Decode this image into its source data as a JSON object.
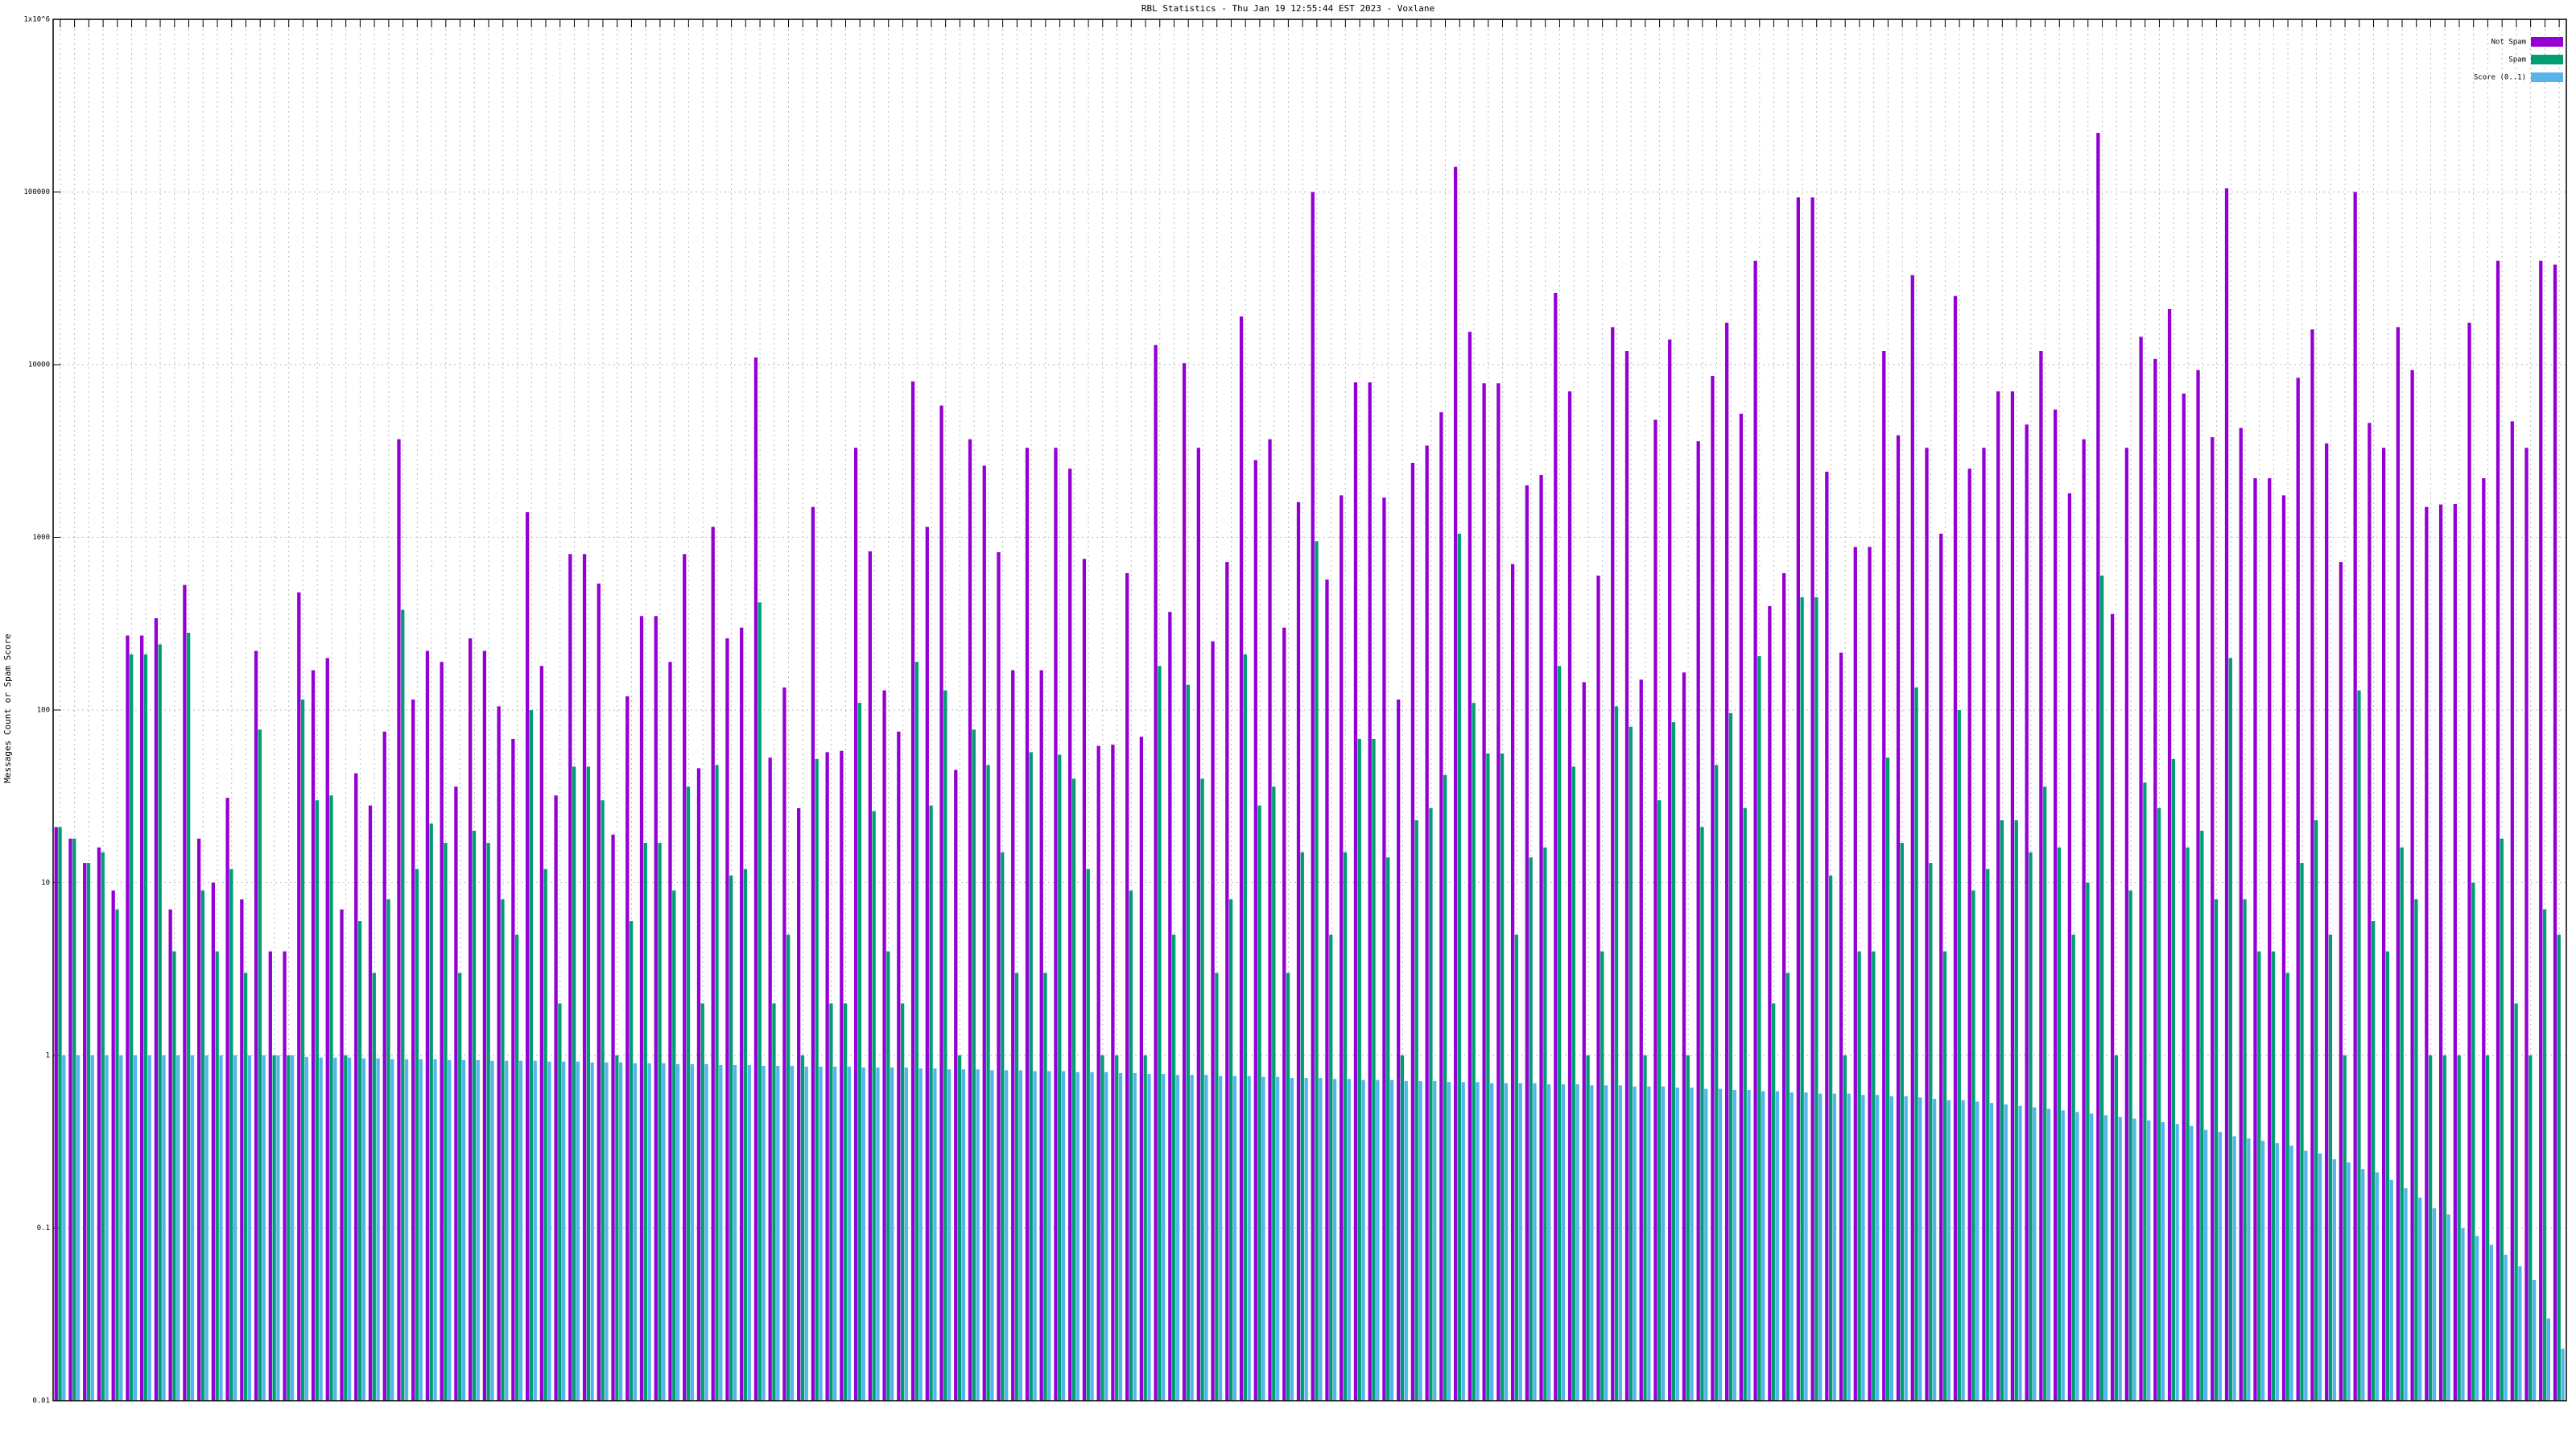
{
  "chart_data": {
    "type": "bar",
    "title": "RBL Statistics - Thu Jan 19 12:55:44 EST 2023 - Voxlane",
    "y_label": "Messages Count or Spam Score",
    "log_y": true,
    "grid": true,
    "legend": "top-right",
    "ylim": [
      0.01,
      1000000
    ],
    "yticks": [
      0.01,
      0.1,
      1,
      10,
      100,
      1000,
      10000,
      100000,
      {
        "value": 1000000,
        "label": "1x10^6"
      }
    ],
    "series": [
      {
        "name": "Not Spam",
        "color": "#9400d3",
        "values": [
          21,
          18,
          13,
          16,
          9,
          270,
          270,
          340,
          7,
          530,
          18,
          10,
          31,
          8,
          220,
          4,
          4,
          480,
          170,
          200,
          7,
          43,
          28,
          75,
          3700,
          115,
          220,
          190,
          36,
          260,
          220,
          105,
          68,
          1400,
          180,
          32,
          800,
          800,
          540,
          19,
          120,
          350,
          350,
          190,
          800,
          46,
          1150,
          260,
          300,
          11000,
          53,
          135,
          27,
          1500,
          57,
          58,
          3300,
          830,
          130,
          75,
          8000,
          1150,
          5800,
          45,
          3700,
          2600,
          820,
          170,
          3300,
          170,
          3300,
          2500,
          750,
          62,
          63,
          620,
          70,
          13000,
          370,
          10200,
          3300,
          250,
          720,
          19000,
          2800,
          3700,
          300,
          1600,
          100000,
          570,
          1750,
          7900,
          7900,
          1700,
          115,
          2700,
          3400,
          5300,
          140000,
          15500,
          7800,
          7800,
          700,
          2000,
          2300,
          26000,
          7000,
          145,
          600,
          16500,
          12000,
          150,
          4800,
          14000,
          165,
          3600,
          8600,
          17500,
          5200,
          40000,
          400,
          620,
          93000,
          93000,
          2400,
          215,
          880,
          880,
          12000,
          3900,
          33000,
          3300,
          1050,
          25000,
          2500,
          3300,
          7000,
          7000,
          4500,
          12000,
          5500,
          1800,
          3700,
          220000,
          360,
          3300,
          14500,
          10800,
          21000,
          6800,
          9300,
          3800,
          105000,
          4300,
          2200,
          2200,
          1750,
          8400,
          16000,
          3500,
          720,
          100000,
          4600,
          3300,
          16500,
          9300,
          1500,
          1550,
          1560,
          17500,
          2200,
          40000,
          4700,
          3300,
          40000,
          38000
        ]
      },
      {
        "name": "Spam",
        "color": "#009e73",
        "values": [
          21,
          18,
          13,
          15,
          7,
          210,
          210,
          240,
          4,
          280,
          9,
          4,
          12,
          3,
          77,
          1,
          1,
          115,
          30,
          32,
          1,
          6,
          3,
          8,
          380,
          12,
          22,
          17,
          3,
          20,
          17,
          8,
          5,
          100,
          12,
          2,
          47,
          47,
          30,
          1,
          6,
          17,
          17,
          9,
          36,
          2,
          48,
          11,
          12,
          420,
          2,
          5,
          1,
          52,
          2,
          2,
          110,
          26,
          4,
          2,
          190,
          28,
          130,
          1,
          77,
          48,
          15,
          3,
          57,
          3,
          55,
          40,
          12,
          1,
          1,
          9,
          1,
          180,
          5,
          140,
          40,
          3,
          8,
          210,
          28,
          36,
          3,
          15,
          950,
          5,
          15,
          68,
          68,
          14,
          1,
          23,
          27,
          42,
          1050,
          110,
          56,
          56,
          5,
          14,
          16,
          180,
          47,
          1,
          4,
          105,
          80,
          1,
          30,
          85,
          1,
          21,
          48,
          96,
          27,
          205,
          2,
          3,
          450,
          450,
          11,
          1,
          4,
          4,
          53,
          17,
          135,
          13,
          4,
          100,
          9,
          12,
          23,
          23,
          15,
          36,
          16,
          5,
          10,
          600,
          1,
          9,
          38,
          27,
          52,
          16,
          20,
          8,
          200,
          8,
          4,
          4,
          3,
          13,
          23,
          5,
          1,
          130,
          6,
          4,
          16,
          8,
          1,
          1,
          1,
          10,
          1,
          18,
          2,
          1,
          7,
          5
        ]
      },
      {
        "name": "Score (0..1)",
        "color": "#56b4e9",
        "values": [
          1,
          1,
          1,
          1,
          1,
          1,
          1,
          1,
          1,
          1,
          1,
          1,
          1,
          1,
          1,
          1,
          1,
          0.98,
          0.97,
          0.97,
          0.97,
          0.96,
          0.96,
          0.95,
          0.95,
          0.95,
          0.95,
          0.94,
          0.94,
          0.94,
          0.93,
          0.93,
          0.93,
          0.93,
          0.92,
          0.92,
          0.92,
          0.91,
          0.91,
          0.91,
          0.9,
          0.9,
          0.9,
          0.89,
          0.89,
          0.89,
          0.88,
          0.88,
          0.88,
          0.87,
          0.87,
          0.87,
          0.86,
          0.86,
          0.86,
          0.86,
          0.85,
          0.85,
          0.85,
          0.85,
          0.84,
          0.84,
          0.83,
          0.83,
          0.83,
          0.82,
          0.82,
          0.82,
          0.81,
          0.81,
          0.81,
          0.8,
          0.8,
          0.8,
          0.79,
          0.79,
          0.78,
          0.78,
          0.77,
          0.77,
          0.77,
          0.76,
          0.76,
          0.76,
          0.75,
          0.75,
          0.74,
          0.74,
          0.74,
          0.73,
          0.73,
          0.72,
          0.72,
          0.72,
          0.71,
          0.71,
          0.71,
          0.7,
          0.7,
          0.7,
          0.69,
          0.69,
          0.69,
          0.69,
          0.68,
          0.68,
          0.68,
          0.67,
          0.67,
          0.67,
          0.66,
          0.66,
          0.66,
          0.65,
          0.65,
          0.64,
          0.64,
          0.63,
          0.63,
          0.62,
          0.62,
          0.61,
          0.61,
          0.6,
          0.6,
          0.6,
          0.59,
          0.59,
          0.58,
          0.58,
          0.57,
          0.56,
          0.55,
          0.55,
          0.54,
          0.53,
          0.52,
          0.51,
          0.5,
          0.49,
          0.48,
          0.47,
          0.46,
          0.45,
          0.44,
          0.43,
          0.42,
          0.41,
          0.4,
          0.39,
          0.37,
          0.36,
          0.34,
          0.33,
          0.32,
          0.31,
          0.3,
          0.28,
          0.27,
          0.25,
          0.24,
          0.22,
          0.21,
          0.19,
          0.17,
          0.15,
          0.13,
          0.12,
          0.1,
          0.09,
          0.08,
          0.07,
          0.06,
          0.05,
          0.03,
          0.02
        ]
      }
    ]
  }
}
